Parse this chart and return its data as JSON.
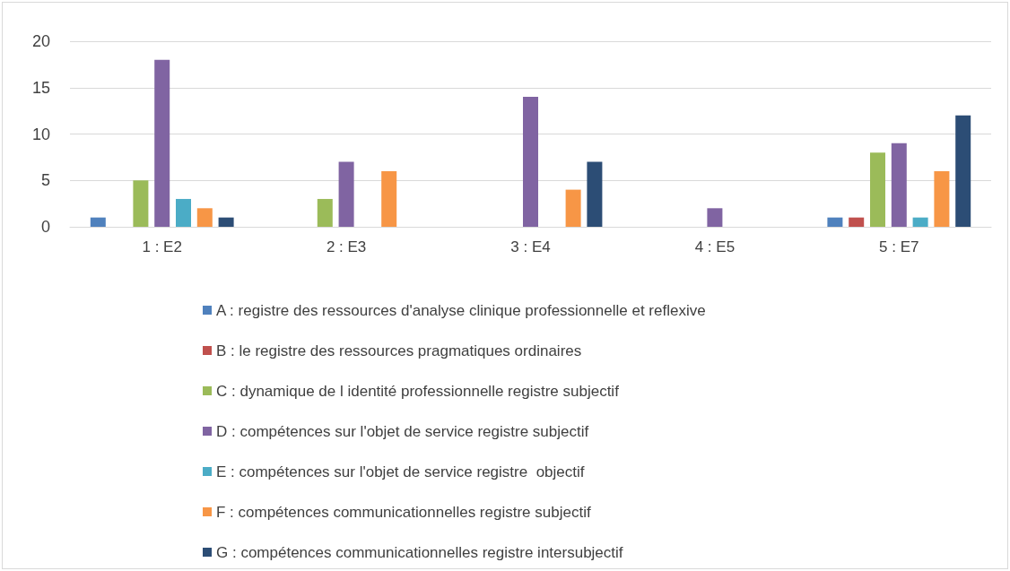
{
  "chart_data": {
    "type": "bar",
    "categories": [
      "1 : E2",
      "2 : E3",
      "3 : E4",
      "4 : E5",
      "5 : E7"
    ],
    "series": [
      {
        "name": "A : registre des ressources d'analyse clinique professionnelle et reflexive",
        "color": "#4f81bd",
        "values": [
          1,
          0,
          0,
          0,
          1
        ]
      },
      {
        "name": "B : le registre des ressources pragmatiques ordinaires",
        "color": "#c0504d",
        "values": [
          0,
          0,
          0,
          0,
          1
        ]
      },
      {
        "name": "C : dynamique de l identité professionnelle registre subjectif",
        "color": "#9bbb59",
        "values": [
          5,
          3,
          0,
          0,
          8
        ]
      },
      {
        "name": "D : compétences sur l'objet de service registre subjectif",
        "color": "#8064a2",
        "values": [
          18,
          7,
          14,
          2,
          9
        ]
      },
      {
        "name": "E : compétences sur l'objet de service registre  objectif",
        "color": "#4bacc6",
        "values": [
          3,
          0,
          0,
          0,
          1
        ]
      },
      {
        "name": "F : compétences communicationnelles registre subjectif",
        "color": "#f79646",
        "values": [
          2,
          6,
          4,
          0,
          6
        ]
      },
      {
        "name": "G : compétences communicationnelles registre intersubjectif",
        "color": "#2c4d75",
        "values": [
          1,
          0,
          7,
          0,
          12
        ]
      }
    ],
    "ylim": [
      0,
      20
    ],
    "yticks": [
      0,
      5,
      10,
      15,
      20
    ],
    "grid": "y",
    "legend": "bottom"
  }
}
